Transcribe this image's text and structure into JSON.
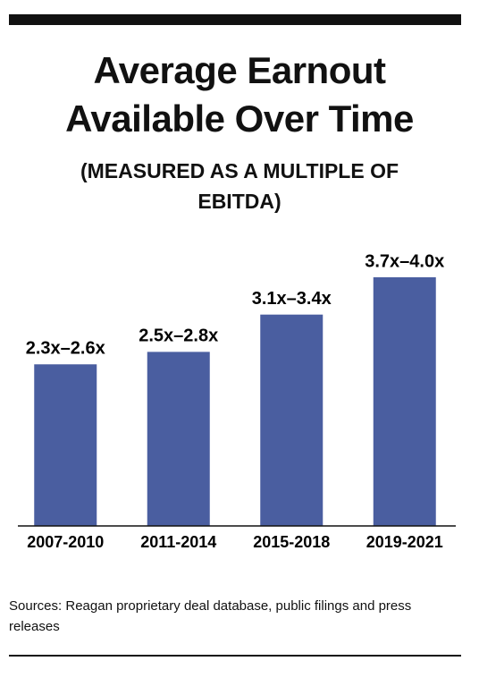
{
  "chart_data": {
    "type": "bar",
    "title": "Average Earnout Available Over Time",
    "subtitle": "(MEASURED AS A MULTIPLE OF EBITDA)",
    "categories": [
      "2007-2010",
      "2011-2014",
      "2015-2018",
      "2019-2021"
    ],
    "values": [
      2.6,
      2.8,
      3.4,
      4.0
    ],
    "value_labels": [
      "2.3x–2.6x",
      "2.5x–2.8x",
      "3.1x–3.4x",
      "3.7x–4.0x"
    ],
    "color": "#4a5ea0",
    "ylim": [
      0,
      4.0
    ],
    "grid": false,
    "source": "Sources: Reagan proprietary deal database, public filings and press releases"
  }
}
